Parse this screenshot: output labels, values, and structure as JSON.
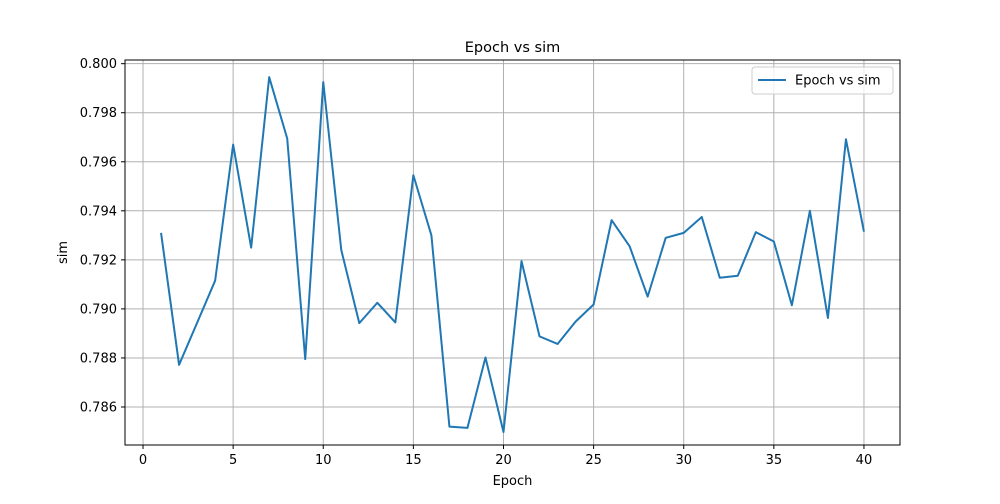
{
  "chart_data": {
    "type": "line",
    "title": "Epoch vs sim",
    "xlabel": "Epoch",
    "ylabel": "sim",
    "xlim": [
      -1.0,
      42.0
    ],
    "ylim": [
      0.78445,
      0.80015
    ],
    "xticks": [
      0,
      5,
      10,
      15,
      20,
      25,
      30,
      35,
      40
    ],
    "xtick_labels": [
      "0",
      "5",
      "10",
      "15",
      "20",
      "25",
      "30",
      "35",
      "40"
    ],
    "yticks": [
      0.786,
      0.788,
      0.79,
      0.792,
      0.794,
      0.796,
      0.798,
      0.8
    ],
    "ytick_labels": [
      "0.786",
      "0.788",
      "0.790",
      "0.792",
      "0.794",
      "0.796",
      "0.798",
      "0.800"
    ],
    "grid": true,
    "legend": {
      "position": "top-right"
    },
    "series": [
      {
        "name": "Epoch vs sim",
        "color": "#1f77b4",
        "x": [
          1,
          2,
          3,
          4,
          5,
          6,
          7,
          8,
          9,
          10,
          11,
          12,
          13,
          14,
          15,
          16,
          17,
          18,
          19,
          20,
          21,
          22,
          23,
          24,
          25,
          26,
          27,
          28,
          29,
          30,
          31,
          32,
          33,
          34,
          35,
          36,
          37,
          38,
          39,
          40
        ],
        "y": [
          0.7931,
          0.78772,
          0.78943,
          0.79115,
          0.7967,
          0.7925,
          0.79945,
          0.79695,
          0.78795,
          0.79925,
          0.7924,
          0.78942,
          0.79025,
          0.78945,
          0.79545,
          0.793,
          0.7852,
          0.78515,
          0.78802,
          0.78498,
          0.79195,
          0.78888,
          0.78857,
          0.78948,
          0.79018,
          0.79362,
          0.79255,
          0.7905,
          0.7929,
          0.7931,
          0.79375,
          0.79127,
          0.79135,
          0.79313,
          0.79275,
          0.79015,
          0.794,
          0.78963,
          0.79692,
          0.79315
        ]
      }
    ]
  }
}
